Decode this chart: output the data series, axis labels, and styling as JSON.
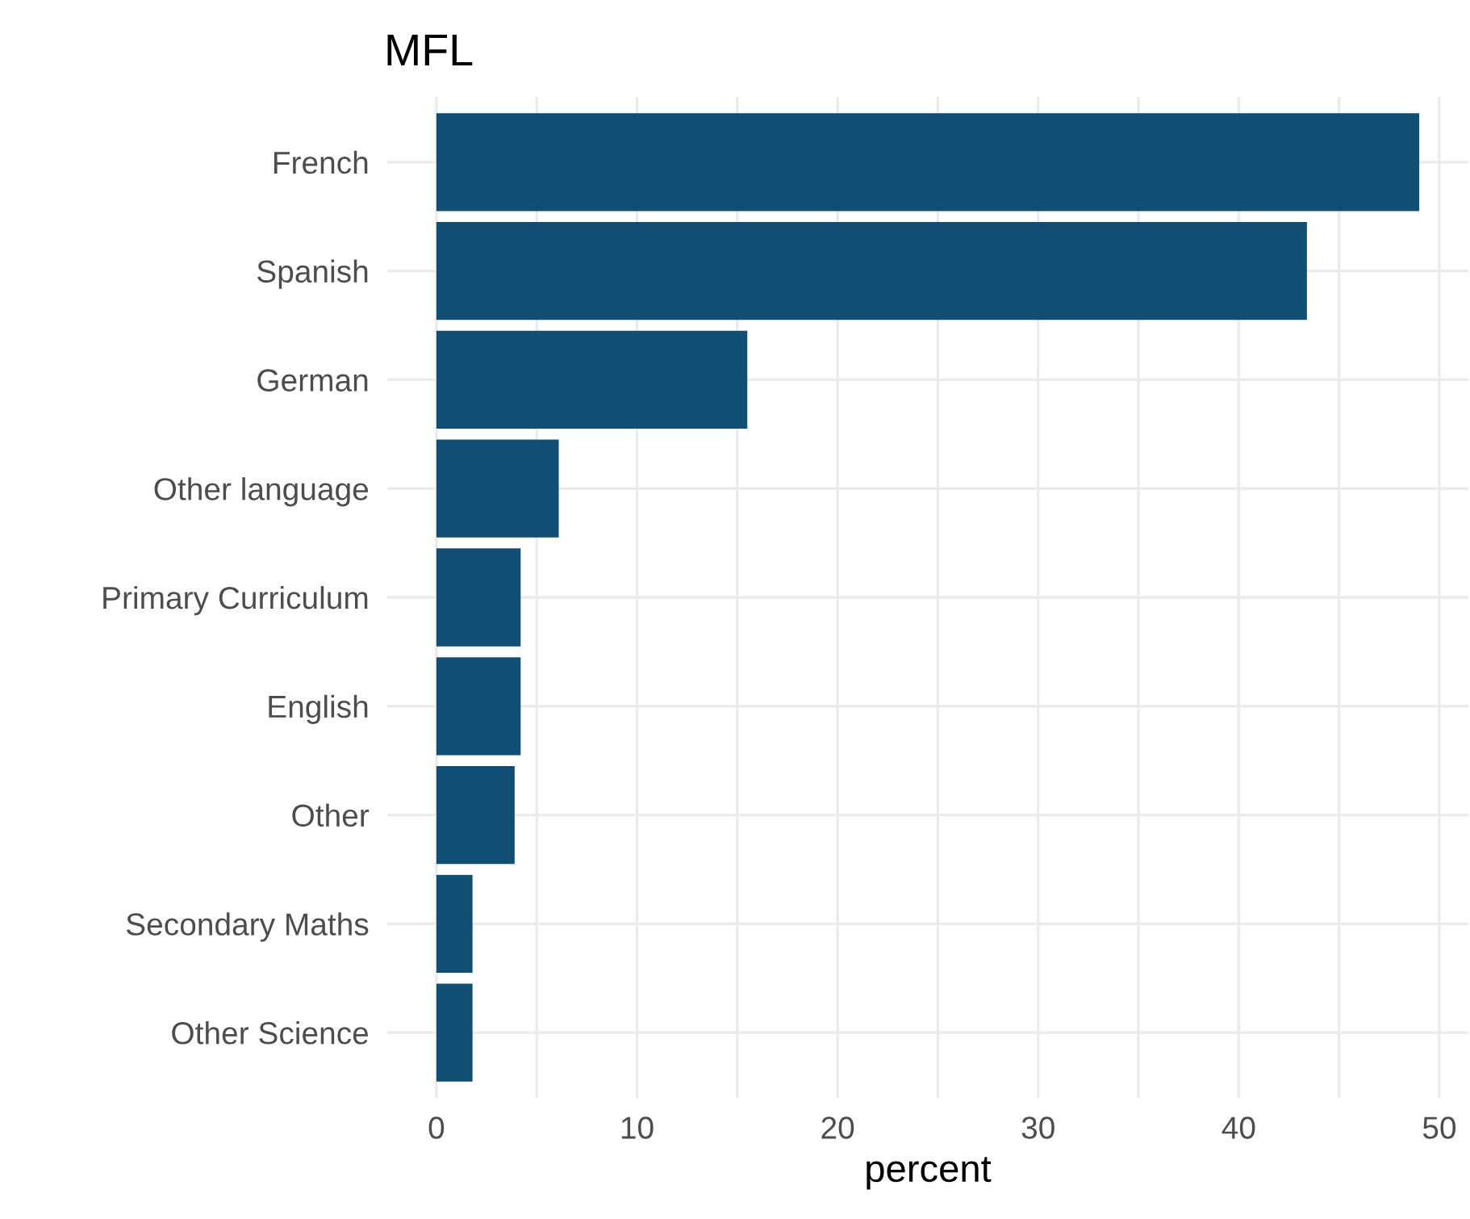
{
  "chart_data": {
    "type": "bar",
    "orientation": "horizontal",
    "title": "MFL",
    "xlabel": "percent",
    "categories": [
      "French",
      "Spanish",
      "German",
      "Other language",
      "Primary Curriculum",
      "English",
      "Other",
      "Secondary Maths",
      "Other Science"
    ],
    "values": [
      49.0,
      43.4,
      15.5,
      6.1,
      4.2,
      4.2,
      3.9,
      1.8,
      1.8
    ],
    "color": "#114e73",
    "xlim": [
      -2.45,
      51.45
    ],
    "xticks": [
      0,
      {
        "value": 5,
        "label": null
      },
      10,
      {
        "value": 15,
        "label": null
      },
      20,
      {
        "value": 25,
        "label": null
      },
      30,
      {
        "value": 35,
        "label": null
      },
      40,
      {
        "value": 45,
        "label": null
      },
      50
    ],
    "grid": true
  }
}
